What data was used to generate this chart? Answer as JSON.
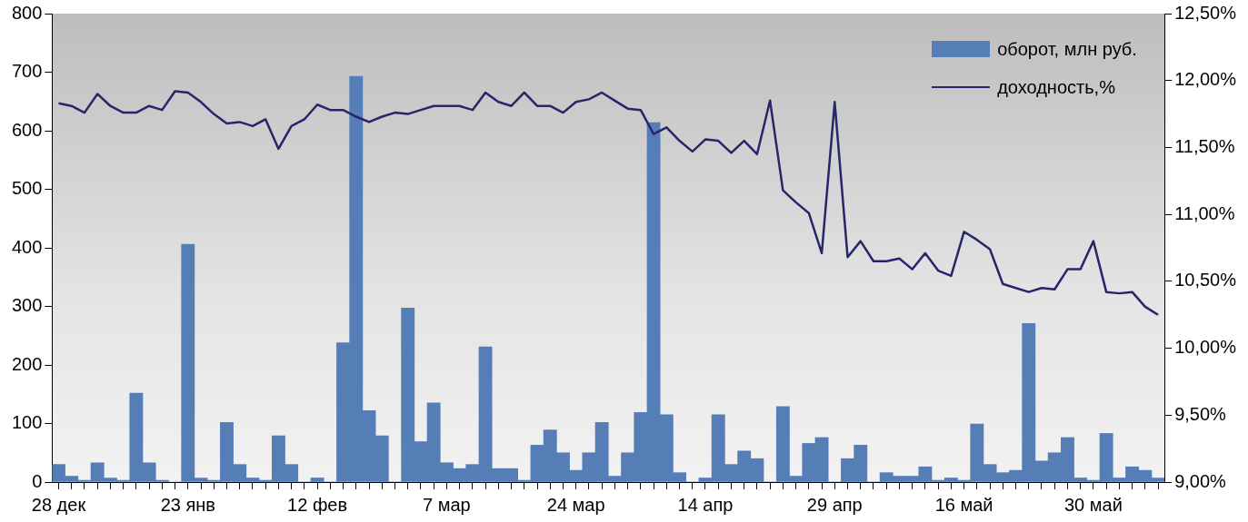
{
  "chart_data": {
    "type": "bar",
    "categories": [
      "28 дек",
      null,
      null,
      null,
      null,
      null,
      null,
      null,
      null,
      null,
      "23 янв",
      null,
      null,
      null,
      null,
      null,
      null,
      null,
      null,
      null,
      "12 фев",
      null,
      null,
      null,
      null,
      null,
      null,
      null,
      null,
      null,
      "7 мар",
      null,
      null,
      null,
      null,
      null,
      null,
      null,
      null,
      null,
      "24 мар",
      null,
      null,
      null,
      null,
      null,
      null,
      null,
      null,
      null,
      "14 апр",
      null,
      null,
      null,
      null,
      null,
      null,
      null,
      null,
      null,
      "29 апр",
      null,
      null,
      null,
      null,
      null,
      null,
      null,
      null,
      null,
      "16 май",
      null,
      null,
      null,
      null,
      null,
      null,
      null,
      null,
      null,
      "30 май",
      null,
      null,
      null,
      null,
      null
    ],
    "series": [
      {
        "name": "оборот, млн руб.",
        "color": "#557eb6",
        "values": [
          30,
          10,
          3,
          33,
          7,
          3,
          152,
          33,
          3,
          0,
          406,
          7,
          3,
          102,
          30,
          7,
          3,
          79,
          30,
          0,
          7,
          0,
          238,
          693,
          122,
          79,
          0,
          297,
          69,
          135,
          33,
          23,
          30,
          231,
          23,
          23,
          3,
          63,
          89,
          50,
          20,
          50,
          102,
          10,
          50,
          119,
          614,
          115,
          16,
          0,
          7,
          115,
          30,
          53,
          40,
          0,
          129,
          10,
          66,
          76,
          0,
          40,
          63,
          0,
          16,
          10,
          10,
          26,
          3,
          7,
          3,
          99,
          30,
          16,
          20,
          271,
          36,
          50,
          76,
          7,
          3,
          83,
          7,
          26,
          20,
          7
        ]
      },
      {
        "name": "доходность,%",
        "type": "line",
        "axis": "y2",
        "color": "#26266b",
        "values": [
          11.83,
          11.81,
          11.76,
          11.9,
          11.81,
          11.76,
          11.76,
          11.81,
          11.78,
          11.92,
          11.91,
          11.84,
          11.75,
          11.68,
          11.69,
          11.66,
          11.71,
          11.49,
          11.66,
          11.71,
          11.82,
          11.78,
          11.78,
          11.73,
          11.69,
          11.73,
          11.76,
          11.75,
          11.78,
          11.81,
          11.81,
          11.81,
          11.78,
          11.91,
          11.84,
          11.81,
          11.91,
          11.81,
          11.81,
          11.76,
          11.84,
          11.86,
          11.91,
          11.85,
          11.79,
          11.78,
          11.6,
          11.65,
          11.55,
          11.47,
          11.56,
          11.55,
          11.46,
          11.55,
          11.45,
          11.85,
          11.18,
          11.09,
          11.01,
          10.71,
          11.84,
          10.68,
          10.8,
          10.65,
          10.65,
          10.67,
          10.59,
          10.71,
          10.58,
          10.54,
          10.87,
          10.81,
          10.74,
          10.48,
          10.45,
          10.42,
          10.45,
          10.44,
          10.59,
          10.59,
          10.8,
          10.42,
          10.41,
          10.42,
          10.31,
          10.25
        ]
      }
    ],
    "ylim": [
      0,
      800
    ],
    "yticks": [
      0,
      100,
      200,
      300,
      400,
      500,
      600,
      700,
      800
    ],
    "y2lim": [
      9,
      12.5
    ],
    "y2ticks": [
      {
        "value": 9,
        "label": "9,00%"
      },
      {
        "value": 9.5,
        "label": "9,50%"
      },
      {
        "value": 10,
        "label": "10,00%"
      },
      {
        "value": 10.5,
        "label": "10,50%"
      },
      {
        "value": 11,
        "label": "11,00%"
      },
      {
        "value": 11.5,
        "label": "11,50%"
      },
      {
        "value": 12,
        "label": "12,00%"
      },
      {
        "value": 12.5,
        "label": "12,50%"
      }
    ],
    "grid": false,
    "legend": "top right",
    "marker": "none",
    "line_style": "solid"
  }
}
